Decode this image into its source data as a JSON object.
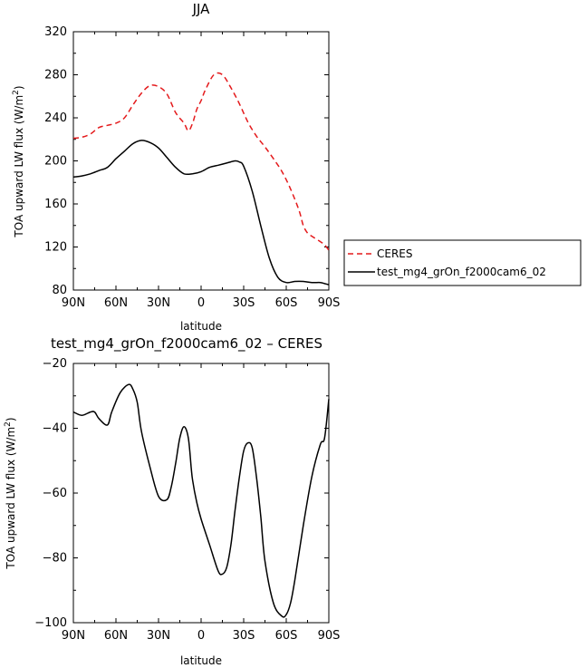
{
  "chart_data": [
    {
      "type": "line",
      "title": "JJA",
      "xlabel": "latitude",
      "ylabel": "TOA upward LW flux (W/m²)",
      "ylabel_main": "TOA upward LW flux (W/m",
      "ylabel_sup": "2",
      "ylabel_close": ")",
      "xlim": [
        90,
        -90
      ],
      "ylim": [
        80,
        320
      ],
      "xticks": [
        90,
        60,
        30,
        0,
        -30,
        -60,
        -90
      ],
      "xtick_labels": [
        "90N",
        "60N",
        "30N",
        "0",
        "30S",
        "60S",
        "90S"
      ],
      "yticks": [
        80,
        120,
        160,
        200,
        240,
        280,
        320
      ],
      "ytick_labels": [
        "80",
        "120",
        "160",
        "200",
        "240",
        "280",
        "320"
      ],
      "legend_position": "right",
      "series": [
        {
          "name": "CERES",
          "color": "#e41a1c",
          "dash": "dashed",
          "x": [
            90,
            84,
            78,
            72,
            66,
            60,
            54,
            48,
            42,
            36,
            30,
            24,
            18,
            12,
            9,
            6,
            3,
            0,
            -3,
            -9,
            -15,
            -21,
            -27,
            -33,
            -39,
            -45,
            -51,
            -57,
            -63,
            -69,
            -72,
            -75,
            -78,
            -84,
            -87,
            -90
          ],
          "y": [
            221,
            222,
            225,
            231,
            233,
            235,
            240,
            252,
            263,
            270,
            269,
            262,
            245,
            235,
            228,
            235,
            248,
            256,
            266,
            280,
            280,
            268,
            253,
            236,
            223,
            213,
            202,
            190,
            174,
            154,
            140,
            133,
            130,
            125,
            122,
            117
          ]
        },
        {
          "name": "test_mg4_grOn_f2000cam6_02",
          "color": "#000000",
          "dash": "solid",
          "x": [
            90,
            84,
            78,
            72,
            66,
            60,
            54,
            48,
            42,
            36,
            30,
            24,
            18,
            12,
            6,
            0,
            -6,
            -12,
            -18,
            -24,
            -27,
            -30,
            -36,
            -42,
            -48,
            -54,
            -60,
            -66,
            -72,
            -78,
            -84,
            -87,
            -90
          ],
          "y": [
            185,
            186,
            188,
            191,
            194,
            202,
            209,
            216,
            219,
            217,
            212,
            203,
            194,
            188,
            188,
            190,
            194,
            196,
            198,
            200,
            199,
            195,
            172,
            140,
            110,
            92,
            87,
            88,
            88,
            87,
            87,
            86,
            85
          ]
        }
      ]
    },
    {
      "type": "line",
      "title": "test_mg4_grOn_f2000cam6_02 – CERES",
      "xlabel": "latitude",
      "ylabel": "TOA upward LW flux (W/m²)",
      "ylabel_main": "TOA upward LW flux (W/m",
      "ylabel_sup": "2",
      "ylabel_close": ")",
      "xlim": [
        90,
        -90
      ],
      "ylim": [
        -100,
        -20
      ],
      "xticks": [
        90,
        60,
        30,
        0,
        -30,
        -60,
        -90
      ],
      "xtick_labels": [
        "90N",
        "60N",
        "30N",
        "0",
        "30S",
        "60S",
        "90S"
      ],
      "yticks": [
        -100,
        -80,
        -60,
        -40,
        -20
      ],
      "ytick_labels": [
        "−100",
        "−80",
        "−60",
        "−40",
        "−20"
      ],
      "series": [
        {
          "color": "#000000",
          "dash": "solid",
          "x": [
            90,
            84,
            78,
            75,
            72,
            66,
            63,
            57,
            51,
            48,
            45,
            42,
            36,
            30,
            24,
            21,
            18,
            15,
            12,
            9,
            7,
            6,
            3,
            0,
            -6,
            -12,
            -15,
            -18,
            -21,
            -24,
            -27,
            -30,
            -33,
            -36,
            -39,
            -42,
            -45,
            -51,
            -57,
            -60,
            -63,
            -66,
            -72,
            -78,
            -84,
            -87,
            -90
          ],
          "y": [
            -35,
            -36,
            -35,
            -35,
            -37,
            -39,
            -35,
            -29,
            -26.5,
            -28,
            -32,
            -41,
            -52,
            -61,
            -62,
            -58,
            -51,
            -43,
            -39.5,
            -43,
            -52,
            -56,
            -63,
            -68,
            -76,
            -84,
            -85,
            -83,
            -76,
            -65,
            -55,
            -47,
            -44.5,
            -46,
            -55,
            -67,
            -81,
            -94,
            -98,
            -97.5,
            -94,
            -87,
            -70,
            -55,
            -45,
            -43,
            -31
          ]
        }
      ]
    }
  ]
}
